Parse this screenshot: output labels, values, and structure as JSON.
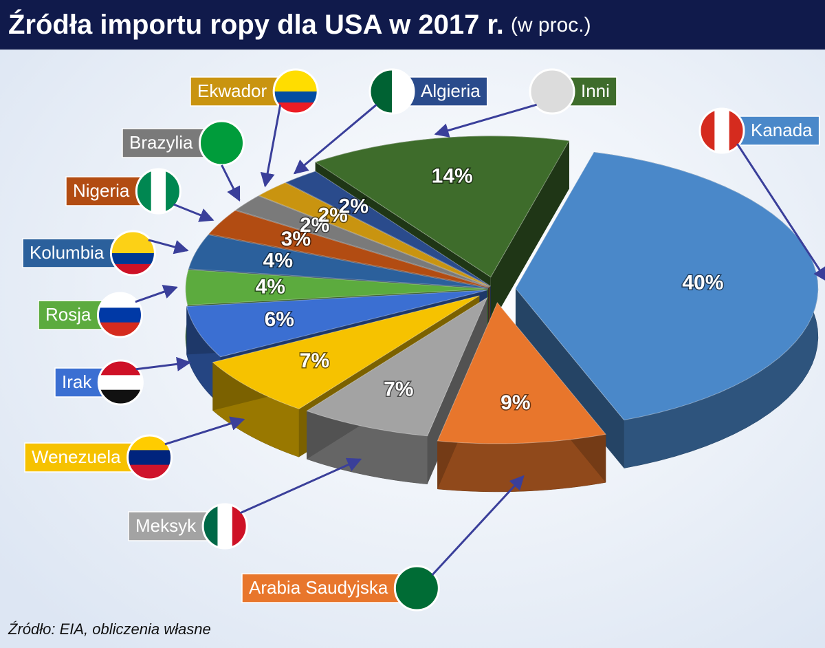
{
  "chart_data": {
    "type": "pie",
    "title": "Źródła importu ropy dla USA w 2017 r.",
    "subtitle": "(w proc.)",
    "categories": [
      "Kanada",
      "Arabia Saudyjska",
      "Meksyk",
      "Wenezuela",
      "Irak",
      "Rosja",
      "Kolumbia",
      "Nigeria",
      "Brazylia",
      "Ekwador",
      "Algieria",
      "Inni"
    ],
    "values": [
      40,
      9,
      7,
      7,
      6,
      4,
      4,
      3,
      2,
      2,
      2,
      14
    ],
    "value_labels": [
      "40%",
      "9%",
      "7%",
      "7%",
      "6%",
      "4%",
      "4%",
      "3%",
      "2%",
      "2%",
      "2%",
      "14%"
    ],
    "colors": [
      "#4a88c9",
      "#e8762c",
      "#a3a3a3",
      "#f6c200",
      "#3b6fd2",
      "#5cab3e",
      "#2b609c",
      "#b24c12",
      "#7a7a7a",
      "#c99410",
      "#2a4b8c",
      "#3e6c2b"
    ],
    "source": "Źródło: EIA, obliczenia własne"
  }
}
